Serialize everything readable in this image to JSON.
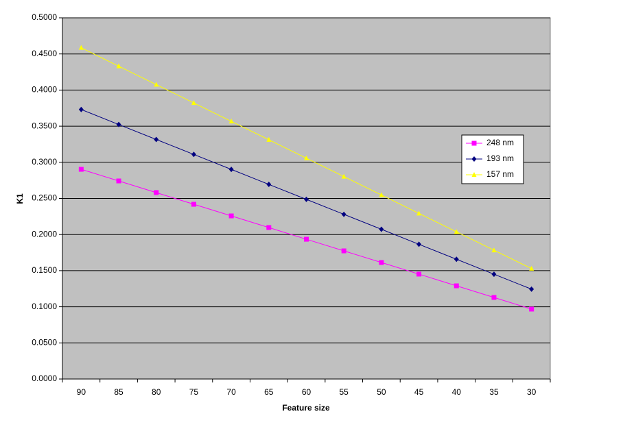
{
  "chart_data": {
    "type": "line",
    "x_label": "Feature size",
    "y_label": "K1",
    "categories": [
      "90",
      "85",
      "80",
      "75",
      "70",
      "65",
      "60",
      "55",
      "50",
      "45",
      "40",
      "35",
      "30"
    ],
    "series": [
      {
        "name": "248 nm",
        "color": "#ff00ff",
        "marker": "square",
        "values": [
          0.2903,
          0.2742,
          0.2581,
          0.2419,
          0.2258,
          0.2097,
          0.1935,
          0.1774,
          0.1613,
          0.1452,
          0.129,
          0.1129,
          0.0968
        ]
      },
      {
        "name": "193 nm",
        "color": "#000080",
        "marker": "diamond",
        "values": [
          0.3731,
          0.3523,
          0.3316,
          0.3109,
          0.2902,
          0.2694,
          0.2487,
          0.228,
          0.2073,
          0.1865,
          0.1658,
          0.1451,
          0.1244
        ]
      },
      {
        "name": "157 nm",
        "color": "#ffff00",
        "marker": "triangle",
        "values": [
          0.4586,
          0.4331,
          0.4076,
          0.3822,
          0.3567,
          0.3312,
          0.3057,
          0.2803,
          0.2548,
          0.2293,
          0.2038,
          0.1783,
          0.1529
        ]
      }
    ],
    "ylim": [
      0,
      0.5
    ],
    "yticks": [
      {
        "value": 0,
        "label": "0.0000"
      },
      {
        "value": 0.05,
        "label": "0.0500"
      },
      {
        "value": 0.1,
        "label": "0.1000"
      },
      {
        "value": 0.15,
        "label": "0.1500"
      },
      {
        "value": 0.2,
        "label": "0.2000"
      },
      {
        "value": 0.25,
        "label": "0.2500"
      },
      {
        "value": 0.3,
        "label": "0.3000"
      },
      {
        "value": 0.35,
        "label": "0.3500"
      },
      {
        "value": 0.4,
        "label": "0.4000"
      },
      {
        "value": 0.45,
        "label": "0.4500"
      },
      {
        "value": 0.5,
        "label": "0.5000"
      }
    ],
    "grid": true,
    "plot_background": "#c0c0c0",
    "legend": "right"
  }
}
